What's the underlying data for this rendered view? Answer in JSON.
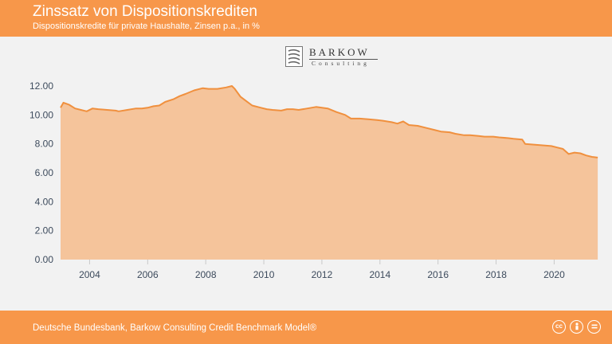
{
  "header": {
    "title": "Zinssatz von Dispositionskrediten",
    "subtitle": "Dispositionskredite für private Haushalte, Zinsen p.a., in %"
  },
  "logo": {
    "name": "BARKOW",
    "sub": "Consulting"
  },
  "footer": {
    "source": "Deutsche Bundesbank, Barkow Consulting Credit Benchmark Model®",
    "license_icons": [
      "cc-icon",
      "by-icon",
      "equals-icon"
    ]
  },
  "colors": {
    "accent": "#f7974a",
    "line": "#f0903e",
    "fill": "#f5c49b",
    "background": "#f2f2f2",
    "axis_text": "#3c4a5c"
  },
  "chart_data": {
    "type": "area",
    "title": "Zinssatz von Dispositionskrediten",
    "xlabel": "",
    "ylabel": "",
    "xlim": [
      2003.0,
      2021.58
    ],
    "ylim": [
      0,
      12
    ],
    "grid": false,
    "x_ticks": [
      2004,
      2006,
      2008,
      2010,
      2012,
      2014,
      2016,
      2018,
      2020
    ],
    "y_ticks": [
      "0.00",
      "2.00",
      "4.00",
      "6.00",
      "8.00",
      "10.00",
      "12.00"
    ],
    "series": [
      {
        "x": [
          2003.0,
          2003.1,
          2003.3,
          2003.5,
          2003.7,
          2003.9,
          2004.1,
          2004.3,
          2004.6,
          2004.9,
          2005.0,
          2005.3,
          2005.6,
          2005.8,
          2006.0,
          2006.2,
          2006.4,
          2006.6,
          2006.9,
          2007.1,
          2007.3,
          2007.6,
          2007.9,
          2008.1,
          2008.4,
          2008.7,
          2008.9,
          2009.0,
          2009.2,
          2009.4,
          2009.6,
          2009.9,
          2010.1,
          2010.3,
          2010.6,
          2010.8,
          2011.0,
          2011.2,
          2011.5,
          2011.8,
          2012.0,
          2012.2,
          2012.5,
          2012.8,
          2013.0,
          2013.3,
          2013.6,
          2013.9,
          2014.1,
          2014.4,
          2014.6,
          2014.8,
          2015.0,
          2015.3,
          2015.6,
          2015.9,
          2016.1,
          2016.4,
          2016.6,
          2016.9,
          2017.1,
          2017.4,
          2017.6,
          2017.9,
          2018.1,
          2018.4,
          2018.6,
          2018.9,
          2019.0,
          2019.3,
          2019.6,
          2019.9,
          2020.1,
          2020.3,
          2020.5,
          2020.7,
          2020.9,
          2021.1,
          2021.3,
          2021.5
        ],
        "y": [
          10.5,
          10.85,
          10.7,
          10.45,
          10.35,
          10.25,
          10.45,
          10.4,
          10.35,
          10.3,
          10.25,
          10.35,
          10.45,
          10.45,
          10.5,
          10.6,
          10.65,
          10.9,
          11.1,
          11.3,
          11.45,
          11.7,
          11.85,
          11.8,
          11.8,
          11.9,
          12.0,
          11.8,
          11.25,
          10.95,
          10.65,
          10.5,
          10.4,
          10.35,
          10.3,
          10.4,
          10.4,
          10.35,
          10.45,
          10.55,
          10.5,
          10.45,
          10.2,
          10.0,
          9.75,
          9.75,
          9.7,
          9.65,
          9.6,
          9.5,
          9.4,
          9.55,
          9.3,
          9.25,
          9.1,
          8.95,
          8.85,
          8.8,
          8.7,
          8.6,
          8.6,
          8.55,
          8.5,
          8.5,
          8.45,
          8.4,
          8.35,
          8.3,
          8.0,
          7.95,
          7.9,
          7.85,
          7.75,
          7.65,
          7.3,
          7.4,
          7.35,
          7.2,
          7.1,
          7.05
        ]
      }
    ]
  }
}
